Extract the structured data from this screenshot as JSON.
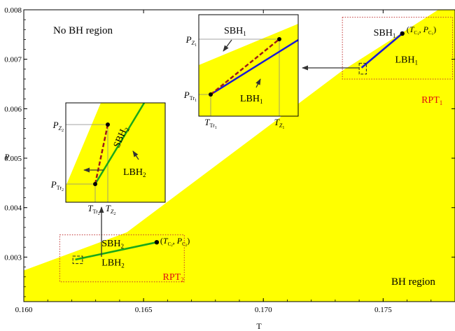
{
  "chart_data": {
    "type": "line",
    "xlabel": "T",
    "ylabel": "P",
    "xlim": [
      0.16,
      0.178
    ],
    "ylim": [
      0.0021,
      0.008
    ],
    "x_ticks": [
      0.16,
      0.165,
      0.17,
      0.175
    ],
    "x_tick_labels": [
      "0.160",
      "0.165",
      "0.170",
      "0.175"
    ],
    "y_ticks": [
      0.003,
      0.004,
      0.005,
      0.006,
      0.007,
      0.008
    ],
    "y_tick_labels": [
      "0.003",
      "0.004",
      "0.005",
      "0.006",
      "0.007",
      "0.008"
    ],
    "grid": false,
    "region_labels": {
      "no_bh": "No BH region",
      "bh": "BH region"
    },
    "colors": {
      "bh_region": "#ffff00",
      "branch_1": "#1a1ad6",
      "branch_2": "#1aa81a",
      "unstable": "#9e1a1a",
      "rpt_box": "#c03030",
      "rpt_label": "#e01010"
    },
    "bh_region_boundary": [
      {
        "T": 0.16,
        "P": 0.00273
      },
      {
        "T": 0.1643,
        "P": 0.0035
      },
      {
        "T": 0.1733,
        "P": 0.00677
      },
      {
        "T": 0.1773,
        "P": 0.008
      }
    ],
    "series": [
      {
        "color": "#1a1ad6",
        "x": [
          0.1741,
          0.1758
        ],
        "y": [
          0.00683,
          0.00752
        ]
      },
      {
        "color": "#1aa81a",
        "x": [
          0.16215,
          0.16555
        ],
        "y": [
          0.00295,
          0.0033
        ]
      }
    ],
    "points": [
      {
        "x": 0.1758,
        "y": 0.00752,
        "label": "(T_C1, P_C1)"
      },
      {
        "x": 0.16555,
        "y": 0.0033,
        "label": "(T_C2, P_C2)"
      }
    ],
    "annotations": [
      {
        "text": "SBH",
        "sub": "1",
        "x": 0.1746,
        "y": 0.00748
      },
      {
        "text": "LBH",
        "sub": "1",
        "x": 0.1755,
        "y": 0.00693
      },
      {
        "text": "RPT",
        "sub": "1",
        "x": 0.1766,
        "y": 0.00612
      },
      {
        "text": "SBH",
        "sub": "2",
        "x": 0.16325,
        "y": 0.00322
      },
      {
        "text": "LBH",
        "sub": "2",
        "x": 0.16325,
        "y": 0.00283
      },
      {
        "text": "RPT",
        "sub": "2",
        "x": 0.1658,
        "y": 0.00254
      }
    ],
    "rpt_boxes": [
      {
        "T": [
          0.1733,
          0.1779
        ],
        "P": [
          0.0066,
          0.00785
        ]
      },
      {
        "T": [
          0.1615,
          0.1667
        ],
        "P": [
          0.0025,
          0.00345
        ]
      }
    ],
    "zoom_boxes": [
      {
        "T": [
          0.174,
          0.1743
        ],
        "P": [
          0.0067,
          0.00692
        ]
      },
      {
        "T": [
          0.16205,
          0.16245
        ],
        "P": [
          0.00287,
          0.00302
        ]
      }
    ],
    "insets": [
      {
        "id": "inset1",
        "line_color": "#1a1ad6",
        "ticks_x": [
          {
            "main": "T",
            "sub": "Tr",
            "sub2": "1"
          },
          {
            "main": "T",
            "sub": "Z",
            "sub2": "1"
          }
        ],
        "ticks_y": [
          {
            "main": "P",
            "sub": "Z",
            "sub2": "1"
          },
          {
            "main": "P",
            "sub": "Tr",
            "sub2": "1"
          }
        ],
        "labels": [
          {
            "text": "SBH",
            "sub": "1"
          },
          {
            "text": "LBH",
            "sub": "1"
          }
        ]
      },
      {
        "id": "inset2",
        "line_color": "#1aa81a",
        "ticks_x": [
          {
            "main": "T",
            "sub": "Tr",
            "sub2": "2"
          },
          {
            "main": "T",
            "sub": "Z",
            "sub2": "2"
          }
        ],
        "ticks_y": [
          {
            "main": "P",
            "sub": "Z",
            "sub2": "2"
          },
          {
            "main": "P",
            "sub": "Tr",
            "sub2": "2"
          }
        ],
        "labels": [
          {
            "text": "SBH",
            "sub": "2"
          },
          {
            "text": "LBH",
            "sub": "2"
          }
        ]
      }
    ]
  }
}
